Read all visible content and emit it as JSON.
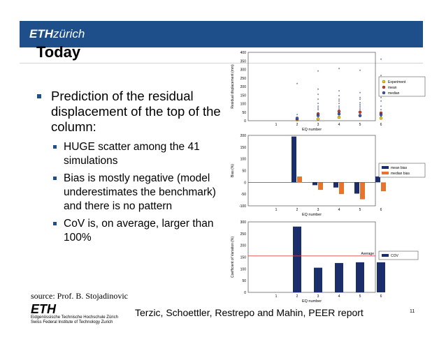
{
  "header": {
    "logo_bold": "ETH",
    "logo_light": "zürich"
  },
  "slide": {
    "title": "Today",
    "bullet_main": "Prediction of the residual displacement of the top of the column:",
    "sub_bullets": [
      "HUGE scatter among the 41 simulations",
      "Bias is mostly negative (model underestimates the benchmark) and there is no pattern",
      "CoV is, on average, larger than 100%"
    ],
    "source": "source: Prof. B. Stojadinovic",
    "footer_logo": "ETH",
    "footer_logo_lines": [
      "Eidgenössische Technische Hochschule Zürich",
      "Swiss Federal Institute of Technology Zurich"
    ],
    "citation": "Terzic, Schoettler, Restrepo and Mahin, PEER report",
    "page_number": "11"
  },
  "colors": {
    "header_blue": "#1f4f8a",
    "bar_navy": "#1a2e6b",
    "bar_orange": "#e8732c",
    "average_line": "#e04040"
  },
  "chart_data": [
    {
      "type": "scatter",
      "xlabel": "EQ number",
      "ylabel": "Residual displacement (mm)",
      "ylim": [
        0,
        400
      ],
      "yticks": [
        "0",
        "50",
        "100",
        "150",
        "200",
        "250",
        "300",
        "350",
        "400"
      ],
      "xticks": [
        "1",
        "2",
        "3",
        "4",
        "5",
        "6"
      ],
      "legend": [
        "Experiment",
        "mean",
        "median"
      ],
      "series": [
        {
          "name": "Experiment",
          "x": [
            2,
            3,
            4,
            5,
            6
          ],
          "y": [
            5,
            10,
            20,
            30,
            15
          ]
        },
        {
          "name": "mean",
          "x": [
            2,
            3,
            4,
            5,
            6
          ],
          "y": [
            10,
            40,
            55,
            50,
            45
          ]
        },
        {
          "name": "median",
          "x": [
            2,
            3,
            4,
            5,
            6
          ],
          "y": [
            15,
            30,
            40,
            30,
            35
          ]
        }
      ],
      "scatter": {
        "x": [
          2,
          2,
          2,
          2,
          3,
          3,
          3,
          3,
          3,
          3,
          3,
          3,
          3,
          3,
          3,
          4,
          4,
          4,
          4,
          4,
          4,
          4,
          4,
          4,
          4,
          4,
          4,
          4,
          5,
          5,
          5,
          5,
          5,
          5,
          5,
          5,
          5,
          5,
          5,
          5,
          6,
          6,
          6,
          6,
          6,
          6,
          6,
          6,
          6,
          6
        ],
        "y": [
          212,
          30,
          10,
          5,
          285,
          180,
          150,
          120,
          95,
          80,
          70,
          60,
          40,
          25,
          10,
          300,
          170,
          140,
          120,
          110,
          95,
          80,
          70,
          60,
          50,
          40,
          30,
          20,
          290,
          160,
          130,
          120,
          100,
          90,
          80,
          70,
          60,
          50,
          30,
          20,
          355,
          260,
          180,
          130,
          110,
          80,
          60,
          45,
          30,
          20
        ]
      }
    },
    {
      "type": "bar",
      "xlabel": "EQ number",
      "ylabel": "Bias (%)",
      "ylim": [
        -100,
        200
      ],
      "yticks": [
        "-100",
        "-50",
        "0",
        "50",
        "100",
        "150",
        "200"
      ],
      "categories": [
        "1",
        "2",
        "3",
        "4",
        "5",
        "6"
      ],
      "series": [
        {
          "name": "mean bias",
          "values": [
            0,
            195,
            -12,
            -22,
            -48,
            25
          ]
        },
        {
          "name": "median bias",
          "values": [
            0,
            25,
            -32,
            -50,
            -72,
            -38
          ]
        }
      ]
    },
    {
      "type": "bar",
      "xlabel": "EQ number",
      "ylabel": "Coefficient of Variation (%)",
      "ylim": [
        0,
        300
      ],
      "yticks": [
        "0",
        "50",
        "100",
        "150",
        "200",
        "250",
        "300"
      ],
      "categories": [
        "1",
        "2",
        "3",
        "4",
        "5",
        "6"
      ],
      "series": [
        {
          "name": "COV",
          "values": [
            0,
            280,
            105,
            125,
            128,
            128
          ]
        }
      ],
      "average": 155,
      "average_label": "Average"
    }
  ]
}
